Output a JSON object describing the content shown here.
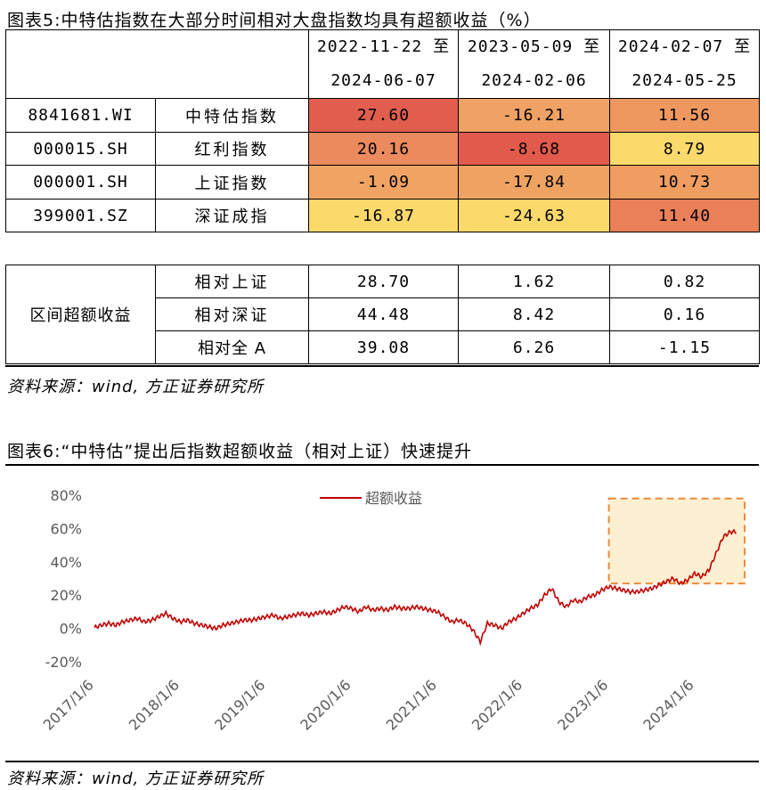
{
  "figure5": {
    "title": "图表5:中特估指数在大部分时间相对大盘指数均具有超额收益（%）",
    "periods": [
      {
        "line1": "2022-11-22 至",
        "line2": "2024-06-07"
      },
      {
        "line1": "2023-05-09 至",
        "line2": "2024-02-06"
      },
      {
        "line1": "2024-02-07 至",
        "line2": "2024-05-25"
      }
    ],
    "rows": [
      {
        "code": "8841681.WI",
        "name": "中特估指数",
        "values": [
          "27.60",
          "-16.21",
          "11.56"
        ],
        "colors": [
          "#e15e4e",
          "#efa264",
          "#ee9860"
        ]
      },
      {
        "code": "000015.SH",
        "name": "红利指数",
        "values": [
          "20.16",
          "-8.68",
          "8.79"
        ],
        "colors": [
          "#eb8a5c",
          "#e15a4b",
          "#fcd96b"
        ]
      },
      {
        "code": "000001.SH",
        "name": "上证指数",
        "values": [
          "-1.09",
          "-17.84",
          "10.73"
        ],
        "colors": [
          "#f0a362",
          "#efa362",
          "#ef9d60"
        ]
      },
      {
        "code": "399001.SZ",
        "name": "深证成指",
        "values": [
          "-16.87",
          "-24.63",
          "11.40"
        ],
        "colors": [
          "#fcd96b",
          "#fcd96b",
          "#e98058"
        ]
      }
    ],
    "excess": {
      "label": "区间超额收益",
      "rows": [
        {
          "name": "相对上证",
          "values": [
            "28.70",
            "1.62",
            "0.82"
          ]
        },
        {
          "name": "相对深证",
          "values": [
            "44.48",
            "8.42",
            "0.16"
          ]
        },
        {
          "name": "相对全 A",
          "values": [
            "39.08",
            "6.26",
            "-1.15"
          ]
        }
      ]
    },
    "source": "资料来源：wind, 方正证券研究所"
  },
  "figure6": {
    "title": "图表6:“中特估”提出后指数超额收益（相对上证）快速提升",
    "source": "资料来源：wind, 方正证券研究所"
  },
  "chart_data": {
    "type": "line",
    "title": "",
    "xlabel": "",
    "ylabel": "",
    "legend_position": "top-center",
    "grid": false,
    "line_color": "#c00000",
    "highlight_fill": "#fdf0d2",
    "highlight_border": "#ee8a3a",
    "highlight_x_range": [
      "2023-01",
      "2024-08"
    ],
    "highlight_y_range": [
      27,
      78
    ],
    "ylim": [
      -20,
      80
    ],
    "y_ticks": [
      "80%",
      "60%",
      "40%",
      "20%",
      "0%",
      "-20%"
    ],
    "x_ticks": [
      "2017/1/6",
      "2018/1/6",
      "2019/1/6",
      "2020/1/6",
      "2021/1/6",
      "2022/1/6",
      "2023/1/6",
      "2024/1/6"
    ],
    "x_range": [
      "2017-01",
      "2024-08"
    ],
    "series": [
      {
        "name": "超额收益",
        "x": [
          "2017-01",
          "2017-02",
          "2017-03",
          "2017-04",
          "2017-05",
          "2017-06",
          "2017-07",
          "2017-08",
          "2017-09",
          "2017-10",
          "2017-11",
          "2017-12",
          "2018-01",
          "2018-02",
          "2018-03",
          "2018-04",
          "2018-05",
          "2018-06",
          "2018-07",
          "2018-08",
          "2018-09",
          "2018-10",
          "2018-11",
          "2018-12",
          "2019-01",
          "2019-02",
          "2019-03",
          "2019-04",
          "2019-05",
          "2019-06",
          "2019-07",
          "2019-08",
          "2019-09",
          "2019-10",
          "2019-11",
          "2019-12",
          "2020-01",
          "2020-02",
          "2020-03",
          "2020-04",
          "2020-05",
          "2020-06",
          "2020-07",
          "2020-08",
          "2020-09",
          "2020-10",
          "2020-11",
          "2020-12",
          "2021-01",
          "2021-02",
          "2021-03",
          "2021-04",
          "2021-05",
          "2021-06",
          "2021-07",
          "2021-08",
          "2021-09",
          "2021-10",
          "2021-11",
          "2021-12",
          "2022-01",
          "2022-02",
          "2022-03",
          "2022-04",
          "2022-05",
          "2022-06",
          "2022-07",
          "2022-08",
          "2022-09",
          "2022-10",
          "2022-11",
          "2022-12",
          "2023-01",
          "2023-02",
          "2023-03",
          "2023-04",
          "2023-05",
          "2023-06",
          "2023-07",
          "2023-08",
          "2023-09",
          "2023-10",
          "2023-11",
          "2023-12",
          "2024-01",
          "2024-02",
          "2024-03",
          "2024-04",
          "2024-05",
          "2024-06"
        ],
        "values": [
          0.5,
          2,
          3,
          2,
          4,
          5,
          6,
          4,
          5,
          7,
          9,
          6,
          4,
          5,
          3,
          2,
          1,
          0,
          2,
          3,
          4,
          5,
          5,
          6,
          7,
          8,
          6,
          7,
          8,
          9,
          8,
          9,
          10,
          9,
          11,
          13,
          12,
          10,
          13,
          11,
          12,
          11,
          13,
          12,
          12,
          13,
          12,
          11,
          10,
          7,
          4,
          5,
          3,
          -1,
          -8,
          3,
          2,
          0,
          4,
          6,
          9,
          12,
          14,
          20,
          24,
          16,
          13,
          17,
          16,
          19,
          20,
          23,
          25,
          24,
          23,
          22,
          22,
          23,
          24,
          26,
          28,
          30,
          27,
          29,
          33,
          31,
          35,
          45,
          55,
          58
        ]
      }
    ]
  }
}
